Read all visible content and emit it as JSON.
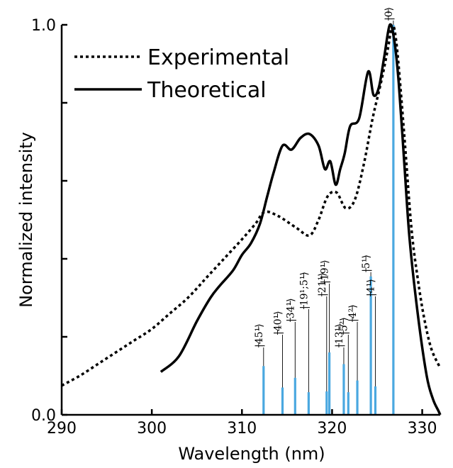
{
  "chart_data": {
    "type": "line",
    "title": "",
    "xlabel": "Wavelength (nm)",
    "ylabel": "Normalized intensity",
    "xlim": [
      290,
      332
    ],
    "ylim": [
      0,
      1
    ],
    "xticks": [
      290,
      300,
      310,
      320,
      330
    ],
    "xtick_labels": [
      "290",
      "300",
      "310",
      "320",
      "330"
    ],
    "yticks": [
      0,
      0.2,
      0.4,
      0.6,
      0.8,
      1.0
    ],
    "ytick_labels": [
      "0.0",
      "",
      "",
      "",
      "",
      "1.0"
    ],
    "legend_position": "top-left",
    "stick_color": "#4aa8e0",
    "series": [
      {
        "name": "Experimental",
        "style": "dotted",
        "x": [
          290,
          292,
          294,
          296,
          298,
          300,
          302,
          304,
          306,
          308,
          310,
          311.5,
          312.5,
          314,
          316,
          317.5,
          318.5,
          319.5,
          320.5,
          321.5,
          322.5,
          323.5,
          324.5,
          325.5,
          326.2,
          326.7,
          327.2,
          328,
          328.8,
          329.5,
          330.2,
          331,
          332
        ],
        "y": [
          0.075,
          0.1,
          0.13,
          0.16,
          0.19,
          0.22,
          0.26,
          0.3,
          0.35,
          0.4,
          0.45,
          0.49,
          0.52,
          0.51,
          0.48,
          0.46,
          0.5,
          0.56,
          0.57,
          0.53,
          0.55,
          0.64,
          0.76,
          0.86,
          0.94,
          1.0,
          0.94,
          0.72,
          0.48,
          0.35,
          0.25,
          0.17,
          0.12
        ]
      },
      {
        "name": "Theoretical",
        "style": "solid",
        "x": [
          301,
          303,
          305,
          306.5,
          307.5,
          309,
          310,
          311,
          312,
          312.8,
          313.5,
          314.5,
          315.5,
          316.5,
          317.5,
          318.5,
          319.2,
          319.8,
          320.4,
          320.9,
          321.4,
          322,
          323,
          324,
          324.6,
          325.2,
          325.8,
          326.4,
          326.9,
          327.4,
          328,
          328.6,
          329.5,
          330.5,
          331.2,
          331.8,
          332
        ],
        "y": [
          0.11,
          0.15,
          0.24,
          0.3,
          0.33,
          0.37,
          0.41,
          0.44,
          0.49,
          0.56,
          0.62,
          0.69,
          0.68,
          0.71,
          0.72,
          0.69,
          0.63,
          0.65,
          0.59,
          0.63,
          0.67,
          0.74,
          0.76,
          0.88,
          0.82,
          0.84,
          0.92,
          1.0,
          0.96,
          0.85,
          0.65,
          0.45,
          0.26,
          0.1,
          0.04,
          0.01,
          0.0
        ]
      }
    ],
    "sticks": [
      {
        "label": "45¹",
        "x": 312.4,
        "y": 0.125
      },
      {
        "label": "40¹",
        "x": 314.5,
        "y": 0.07
      },
      {
        "label": "34¹",
        "x": 315.9,
        "y": 0.095
      },
      {
        "label": "19¹;5¹",
        "x": 317.4,
        "y": 0.058
      },
      {
        "label": "21¹",
        "x": 319.4,
        "y": 0.06
      },
      {
        "label": "19¹",
        "x": 319.7,
        "y": 0.16
      },
      {
        "label": "13¹",
        "x": 321.3,
        "y": 0.13
      },
      {
        "label": "5²",
        "x": 321.8,
        "y": 0.058
      },
      {
        "label": "4²",
        "x": 322.8,
        "y": 0.088
      },
      {
        "label": "5¹",
        "x": 324.3,
        "y": 0.355
      },
      {
        "label": "4¹",
        "x": 324.8,
        "y": 0.073
      },
      {
        "label": "0",
        "x": 326.8,
        "y": 1.0
      }
    ]
  }
}
